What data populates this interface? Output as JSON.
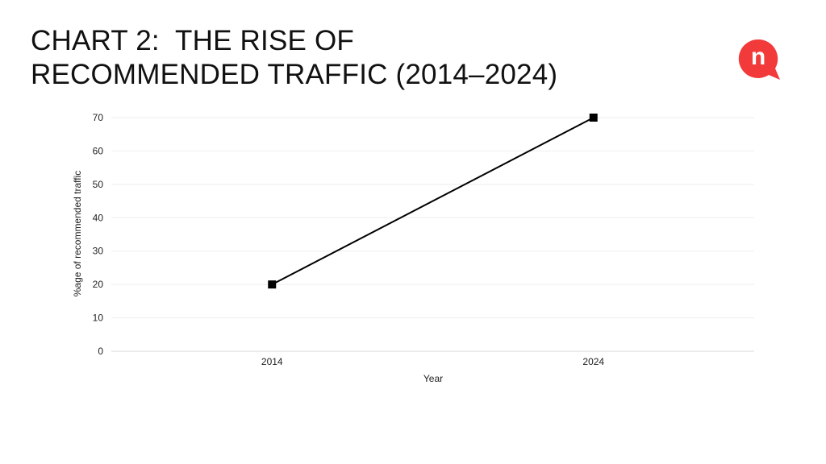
{
  "page": {
    "title_line1": "CHART 2:  THE RISE OF",
    "title_line2": "RECOMMENDED TRAFFIC (2014–2024)"
  },
  "logo": {
    "icon": "n-speech-bubble-logo",
    "letter": "n",
    "color": "#f23a3a"
  },
  "chart_data": {
    "type": "line",
    "title": "CHART 2:  THE RISE OF RECOMMENDED TRAFFIC (2014–2024)",
    "xlabel": "Year",
    "ylabel": "%age of recommended traffic",
    "categories": [
      "2014",
      "2024"
    ],
    "series": [
      {
        "values": [
          20,
          70
        ],
        "color": "#000000",
        "marker": "square"
      }
    ],
    "ylim": [
      0,
      70
    ],
    "yticks": [
      0,
      10,
      20,
      30,
      40,
      50,
      60,
      70
    ],
    "grid": true
  }
}
